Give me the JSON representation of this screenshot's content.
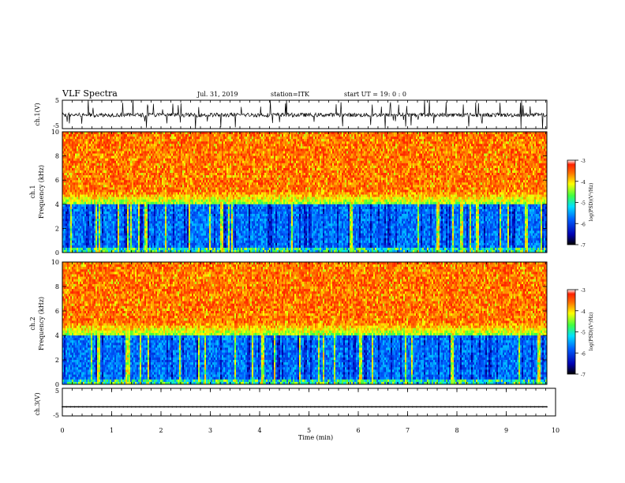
{
  "header": {
    "title": "VLF Spectra",
    "date": "Jul. 31, 2019",
    "station": "station=ITK",
    "start": "start UT =  19: 0 : 0"
  },
  "chart_data": [
    {
      "type": "line",
      "panel": "ch1-waveform",
      "ylabel": "ch.1(V)",
      "ylim": [
        -5,
        5
      ],
      "yticks": [
        "5",
        "-5"
      ],
      "xlim": [
        0,
        10
      ],
      "note": "dense noisy waveform with spikes"
    },
    {
      "type": "heatmap",
      "panel": "ch1-spectrogram",
      "ylabel_top": "ch.1",
      "ylabel": "Frequency (kHz)",
      "ylim": [
        0,
        10
      ],
      "yticks": [
        "0",
        "2",
        "4",
        "6",
        "8",
        "10"
      ],
      "xlim": [
        0,
        9.8
      ],
      "colorbar": {
        "label": "log(PSD)(V²/Hz)",
        "range": [
          -7,
          -3
        ],
        "ticks": [
          "-3",
          "-4",
          "-5",
          "-6",
          "-7"
        ]
      }
    },
    {
      "type": "heatmap",
      "panel": "ch2-spectrogram",
      "ylabel_top": "ch.2",
      "ylabel": "Frequency (kHz)",
      "ylim": [
        0,
        10
      ],
      "yticks": [
        "0",
        "2",
        "4",
        "6",
        "8",
        "10"
      ],
      "xlim": [
        0,
        9.8
      ],
      "colorbar": {
        "label": "log(PSD)(V²/Hz)",
        "range": [
          -7,
          -3
        ],
        "ticks": [
          "-3",
          "-4",
          "-5",
          "-6",
          "-7"
        ]
      }
    },
    {
      "type": "line",
      "panel": "ch3-waveform",
      "ylabel": "ch.3(V)",
      "ylim": [
        -5,
        5
      ],
      "yticks": [
        "5",
        "-5"
      ],
      "level": -1.7,
      "xlim": [
        0,
        10
      ],
      "xlabel": "Time (min)",
      "xticks": [
        "0",
        "1",
        "2",
        "3",
        "4",
        "5",
        "6",
        "7",
        "8",
        "9",
        "10"
      ]
    }
  ]
}
